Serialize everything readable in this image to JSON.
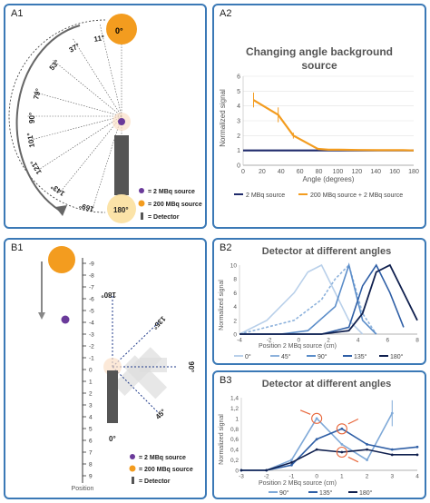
{
  "panels": {
    "A1": {
      "label": "A1",
      "angles": [
        "0°",
        "11°",
        "37°",
        "53°",
        "79°",
        "90°",
        "101°",
        "121°",
        "143°",
        "169°",
        "180°"
      ],
      "legend": [
        "= 2 MBq source",
        "= 200 MBq source",
        "= Detector"
      ]
    },
    "A2": {
      "label": "A2",
      "title_line1": "Changing angle background",
      "title_line2": "source",
      "ylabel": "Normalized signal",
      "xlabel": "Angle (degrees)",
      "xticks": [
        "0",
        "20",
        "40",
        "60",
        "80",
        "100",
        "120",
        "140",
        "160",
        "180"
      ],
      "yticks": [
        "0",
        "1",
        "2",
        "3",
        "4",
        "5",
        "6"
      ],
      "legend": [
        "2 MBq source",
        "200 MBq source + 2 MBq source"
      ]
    },
    "B1": {
      "label": "B1",
      "position_ticks": [
        "-9",
        "-8",
        "-7",
        "-6",
        "-5",
        "-4",
        "-3",
        "-2",
        "-1",
        "0",
        "1",
        "2",
        "3",
        "4",
        "5",
        "6",
        "7",
        "8",
        "9"
      ],
      "axis_label": "Position",
      "angles": [
        "180°",
        "135°",
        "90°",
        "45°",
        "0°"
      ],
      "legend": [
        "= 2 MBq source",
        "= 200 MBq source",
        "= Detector"
      ]
    },
    "B2": {
      "label": "B2",
      "title": "Detector at different angles",
      "ylabel": "Normalized signal",
      "xlabel": "Position 2 MBq source (cm)",
      "xticks": [
        "-4",
        "-2",
        "0",
        "2",
        "4",
        "6",
        "8"
      ],
      "yticks": [
        "0",
        "2",
        "4",
        "6",
        "8",
        "10"
      ],
      "legend": [
        "0°",
        "45°",
        "90°",
        "135°",
        "180°"
      ]
    },
    "B3": {
      "label": "B3",
      "title": "Detector at different angles",
      "ylabel": "Normalized signal",
      "xlabel": "Position 2 MBq source (cm)",
      "xticks": [
        "-3",
        "-2",
        "-1",
        "0",
        "1",
        "2",
        "3",
        "4"
      ],
      "yticks": [
        "0",
        "0,2",
        "0,4",
        "0,6",
        "0,8",
        "1",
        "1,2",
        "1,4"
      ],
      "legend": [
        "90°",
        "135°",
        "180°"
      ]
    }
  },
  "colors": {
    "frame": "#3b79b6",
    "orange": "#f39c1f",
    "navy": "#1f2a6b",
    "purple": "#6a3a9a",
    "detector": "#555555"
  },
  "chart_data": [
    {
      "type": "line",
      "title": "Changing angle background source",
      "xlabel": "Angle (degrees)",
      "ylabel": "Normalized signal",
      "xlim": [
        0,
        180
      ],
      "ylim": [
        0,
        6
      ],
      "series": [
        {
          "name": "2 MBq source",
          "x": [
            0,
            180
          ],
          "values": [
            1,
            1
          ]
        },
        {
          "name": "200 MBq source + 2 MBq source",
          "x": [
            11,
            37,
            53,
            79,
            90,
            101,
            121,
            143,
            169,
            180
          ],
          "values": [
            4.4,
            3.4,
            2.0,
            1.1,
            1.05,
            1.05,
            1.03,
            1.02,
            1.02,
            1.0
          ]
        }
      ]
    },
    {
      "type": "line",
      "title": "Detector at different angles",
      "xlabel": "Position 2 MBq source (cm)",
      "ylabel": "Normalized signal",
      "xlim": [
        -4,
        9
      ],
      "ylim": [
        0,
        10
      ],
      "series": [
        {
          "name": "0°",
          "x": [
            -4,
            -2,
            0,
            1,
            2,
            3,
            4,
            5
          ],
          "values": [
            0,
            2,
            6,
            9,
            10,
            6,
            2,
            0
          ]
        },
        {
          "name": "45°",
          "x": [
            -4,
            -2,
            0,
            2,
            3,
            4,
            5,
            6
          ],
          "values": [
            0,
            1,
            2,
            5,
            8,
            10,
            3,
            0
          ]
        },
        {
          "name": "90°",
          "x": [
            -4,
            -1,
            1,
            3,
            4,
            5,
            6
          ],
          "values": [
            0,
            0,
            0.5,
            4,
            10,
            2,
            0
          ]
        },
        {
          "name": "135°",
          "x": [
            -4,
            0,
            2,
            4,
            5,
            6,
            7,
            8
          ],
          "values": [
            0,
            0,
            0,
            1,
            7,
            10,
            6,
            1
          ]
        },
        {
          "name": "180°",
          "x": [
            -4,
            0,
            2,
            4,
            5,
            6,
            7,
            8,
            9
          ],
          "values": [
            0,
            0,
            0,
            0.5,
            3,
            9,
            10,
            6,
            2
          ]
        }
      ]
    },
    {
      "type": "line",
      "title": "Detector at different angles",
      "xlabel": "Position 2 MBq source (cm)",
      "ylabel": "Normalized signal",
      "xlim": [
        -3,
        4
      ],
      "ylim": [
        0,
        1.4
      ],
      "series": [
        {
          "name": "90°",
          "x": [
            -3,
            -2,
            -1,
            0,
            1,
            2,
            3
          ],
          "values": [
            0,
            0,
            0.2,
            1.0,
            0.5,
            0.2,
            1.1
          ]
        },
        {
          "name": "135°",
          "x": [
            -3,
            -2,
            -1,
            0,
            1,
            2,
            3,
            4
          ],
          "values": [
            0,
            0,
            0.1,
            0.6,
            0.8,
            0.5,
            0.4,
            0.45
          ]
        },
        {
          "name": "180°",
          "x": [
            -3,
            -2,
            -1,
            0,
            1,
            2,
            3,
            4
          ],
          "values": [
            0,
            0,
            0.15,
            0.4,
            0.35,
            0.4,
            0.3,
            0.3
          ]
        }
      ]
    }
  ]
}
